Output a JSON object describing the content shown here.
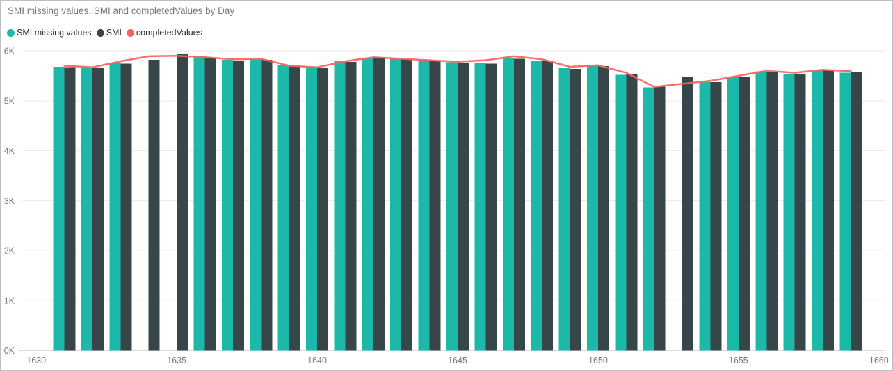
{
  "colors": {
    "background": "#ffffff",
    "border": "#bfbfbf",
    "gridline": "#ebebeb",
    "axis_line": "#dcdcdc",
    "axis_text": "#777777",
    "title_text": "#777777",
    "legend_text": "#2f2f2f"
  },
  "chart_data": {
    "type": "bar",
    "subtype": "clustered-bars-with-line",
    "title": "SMI missing values, SMI and completedValues by Day",
    "legend_position": "top-left",
    "grid": true,
    "x": [
      1631,
      1632,
      1633,
      1634,
      1635,
      1636,
      1637,
      1638,
      1639,
      1640,
      1641,
      1642,
      1643,
      1644,
      1645,
      1646,
      1647,
      1648,
      1649,
      1650,
      1651,
      1652,
      1653,
      1654,
      1655,
      1656,
      1657,
      1658,
      1659
    ],
    "x_ticks": [
      1630,
      1635,
      1640,
      1645,
      1650,
      1655,
      1660
    ],
    "x_range": [
      1629.5,
      1660.5
    ],
    "ylim": [
      0,
      6000
    ],
    "y_ticks": [
      {
        "v": 0,
        "label": "0K"
      },
      {
        "v": 1000,
        "label": "1K"
      },
      {
        "v": 2000,
        "label": "2K"
      },
      {
        "v": 3000,
        "label": "3K"
      },
      {
        "v": 4000,
        "label": "4K"
      },
      {
        "v": 5000,
        "label": "5K"
      },
      {
        "v": 6000,
        "label": "6K"
      }
    ],
    "series": [
      {
        "name": "SMI missing values",
        "type": "bar",
        "color": "#1cb8aa",
        "values": [
          5680,
          5660,
          5750,
          null,
          null,
          5890,
          5820,
          5830,
          5710,
          5670,
          5790,
          5860,
          5840,
          5820,
          5770,
          5750,
          5850,
          5800,
          5650,
          5700,
          5520,
          5270,
          null,
          5380,
          5480,
          5590,
          5540,
          5620,
          5560
        ]
      },
      {
        "name": "SMI",
        "type": "bar",
        "color": "#374649",
        "values": [
          5670,
          5650,
          5740,
          5820,
          5940,
          5850,
          5800,
          5820,
          5700,
          5660,
          5780,
          5850,
          5830,
          5800,
          5760,
          5740,
          5840,
          5790,
          5640,
          5690,
          5530,
          5280,
          5480,
          5370,
          5470,
          5570,
          5530,
          5600,
          5570
        ]
      },
      {
        "name": "completedValues",
        "type": "line",
        "color": "#fd625e",
        "values": [
          5700,
          5670,
          5790,
          5890,
          5900,
          5870,
          5830,
          5840,
          5700,
          5670,
          5790,
          5870,
          5840,
          5810,
          5780,
          5810,
          5890,
          5830,
          5680,
          5710,
          5560,
          5280,
          5340,
          5400,
          5500,
          5600,
          5560,
          5620,
          5590
        ]
      }
    ]
  }
}
